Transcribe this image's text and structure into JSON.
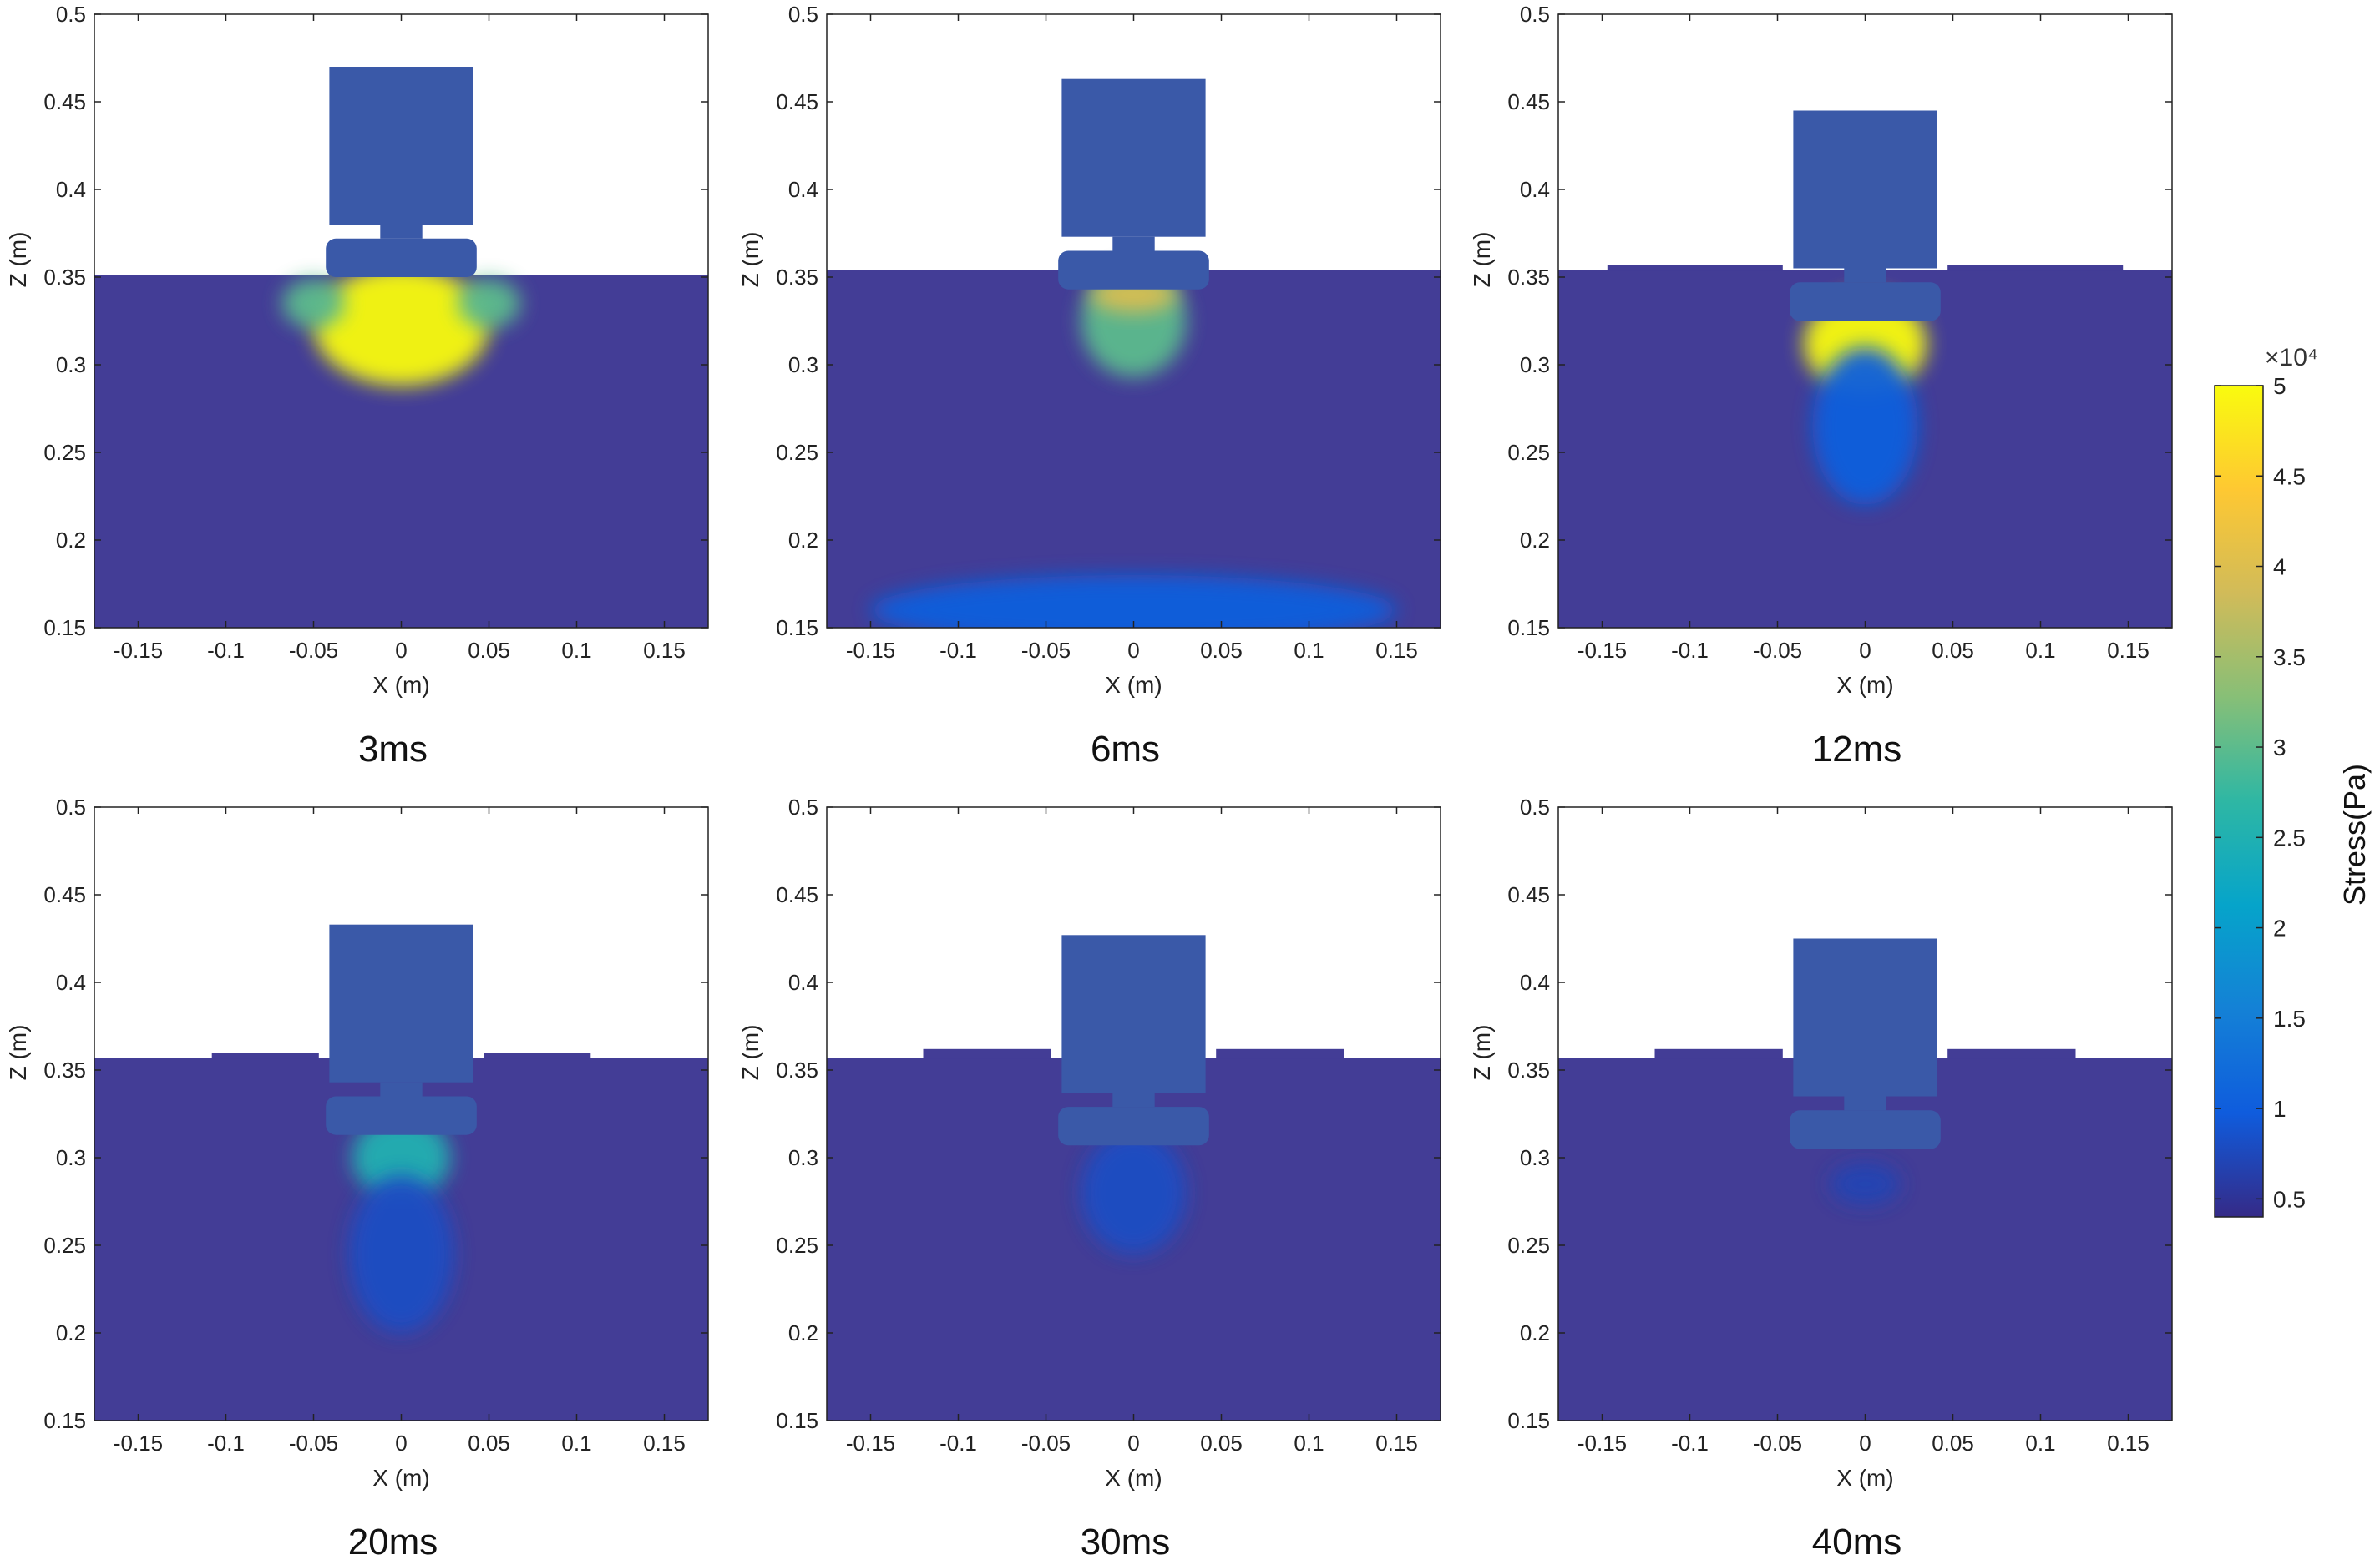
{
  "chart_data": {
    "type": "heatmap",
    "panel_common": {
      "xlabel": "X (m)",
      "ylabel": "Z (m)",
      "xlim": [
        -0.175,
        0.175
      ],
      "ylim": [
        0.15,
        0.5
      ],
      "xticks": [
        -0.15,
        -0.1,
        -0.05,
        0,
        0.05,
        0.1,
        0.15
      ],
      "xtick_labels": [
        "-0.15",
        "-0.1",
        "-0.05",
        "0",
        "0.05",
        "0.1",
        "0.15"
      ],
      "yticks": [
        0.15,
        0.2,
        0.25,
        0.3,
        0.35,
        0.4,
        0.45,
        0.5
      ],
      "ytick_labels": [
        "0.15",
        "0.2",
        "0.25",
        "0.3",
        "0.35",
        "0.4",
        "0.45",
        "0.5"
      ],
      "grid": false
    },
    "panels": [
      {
        "caption": "3ms",
        "ground_surface_z": 0.351,
        "block_z": [
          0.38,
          0.47
        ],
        "block_half_width": 0.041,
        "base_z": [
          0.35,
          0.372
        ],
        "base_half_width": 0.043,
        "stress_zones": [
          {
            "x": 0,
            "z": 0.322,
            "rx": 0.05,
            "rz": 0.034,
            "value": 50000
          },
          {
            "x": -0.05,
            "z": 0.335,
            "rx": 0.018,
            "rz": 0.014,
            "value": 30000
          },
          {
            "x": 0.05,
            "z": 0.335,
            "rx": 0.018,
            "rz": 0.014,
            "value": 30000
          }
        ],
        "surface_steps": []
      },
      {
        "caption": "6ms",
        "ground_surface_z": 0.354,
        "block_z": [
          0.373,
          0.463
        ],
        "block_half_width": 0.041,
        "base_z": [
          0.343,
          0.365
        ],
        "base_half_width": 0.043,
        "stress_zones": [
          {
            "x": 0,
            "z": 0.325,
            "rx": 0.03,
            "rz": 0.032,
            "value": 30000
          },
          {
            "x": 0,
            "z": 0.34,
            "rx": 0.025,
            "rz": 0.01,
            "value": 40000
          },
          {
            "x": 0,
            "z": 0.16,
            "rx": 0.15,
            "rz": 0.02,
            "value": 10000
          }
        ],
        "surface_steps": []
      },
      {
        "caption": "12ms",
        "ground_surface_z": 0.354,
        "block_z": [
          0.355,
          0.445
        ],
        "block_half_width": 0.041,
        "base_z": [
          0.325,
          0.347
        ],
        "base_half_width": 0.043,
        "stress_zones": [
          {
            "x": 0,
            "z": 0.312,
            "rx": 0.035,
            "rz": 0.028,
            "value": 50000
          },
          {
            "x": 0,
            "z": 0.265,
            "rx": 0.03,
            "rz": 0.045,
            "value": 10000
          }
        ],
        "surface_steps": [
          {
            "x": [
              -0.147,
              -0.047
            ],
            "z": 0.357
          },
          {
            "x": [
              0.047,
              0.147
            ],
            "z": 0.357
          }
        ]
      },
      {
        "caption": "20ms",
        "ground_surface_z": 0.357,
        "block_z": [
          0.343,
          0.433
        ],
        "block_half_width": 0.041,
        "base_z": [
          0.313,
          0.335
        ],
        "base_half_width": 0.043,
        "stress_zones": [
          {
            "x": 0,
            "z": 0.3,
            "rx": 0.028,
            "rz": 0.024,
            "value": 25000
          },
          {
            "x": 0,
            "z": 0.245,
            "rx": 0.03,
            "rz": 0.045,
            "value": 8000
          }
        ],
        "surface_steps": [
          {
            "x": [
              -0.108,
              -0.047
            ],
            "z": 0.36
          },
          {
            "x": [
              0.047,
              0.108
            ],
            "z": 0.36
          }
        ]
      },
      {
        "caption": "30ms",
        "ground_surface_z": 0.357,
        "block_z": [
          0.337,
          0.427
        ],
        "block_half_width": 0.041,
        "base_z": [
          0.307,
          0.329
        ],
        "base_half_width": 0.043,
        "stress_zones": [
          {
            "x": 0,
            "z": 0.28,
            "rx": 0.03,
            "rz": 0.035,
            "value": 8000
          }
        ],
        "surface_steps": [
          {
            "x": [
              -0.12,
              -0.047
            ],
            "z": 0.362
          },
          {
            "x": [
              0.047,
              0.12
            ],
            "z": 0.362
          }
        ]
      },
      {
        "caption": "40ms",
        "ground_surface_z": 0.357,
        "block_z": [
          0.335,
          0.425
        ],
        "block_half_width": 0.041,
        "base_z": [
          0.305,
          0.327
        ],
        "base_half_width": 0.043,
        "stress_zones": [
          {
            "x": 0,
            "z": 0.285,
            "rx": 0.02,
            "rz": 0.012,
            "value": 7000
          }
        ],
        "surface_steps": [
          {
            "x": [
              -0.12,
              -0.047
            ],
            "z": 0.362
          },
          {
            "x": [
              0.047,
              0.12
            ],
            "z": 0.362
          }
        ]
      }
    ],
    "colorbar": {
      "label": "Stress(Pa)",
      "exponent_label": "×10⁴",
      "range": [
        0.4,
        5.0
      ],
      "ticks": [
        0.5,
        1,
        1.5,
        2,
        2.5,
        3,
        3.5,
        4,
        4.5,
        5
      ],
      "tick_labels": [
        "0.5",
        "1",
        "1.5",
        "2",
        "2.5",
        "3",
        "3.5",
        "4",
        "4.5",
        "5"
      ],
      "colormap": "parula"
    },
    "colors": {
      "background_soil": "#433d96",
      "footing": "#3a59a8",
      "parula_stops": [
        "#352a87",
        "#0f5cdd",
        "#1481d6",
        "#06a4ca",
        "#2eb7a4",
        "#87bf77",
        "#d1bb59",
        "#fec832",
        "#f9fb0e"
      ]
    }
  }
}
